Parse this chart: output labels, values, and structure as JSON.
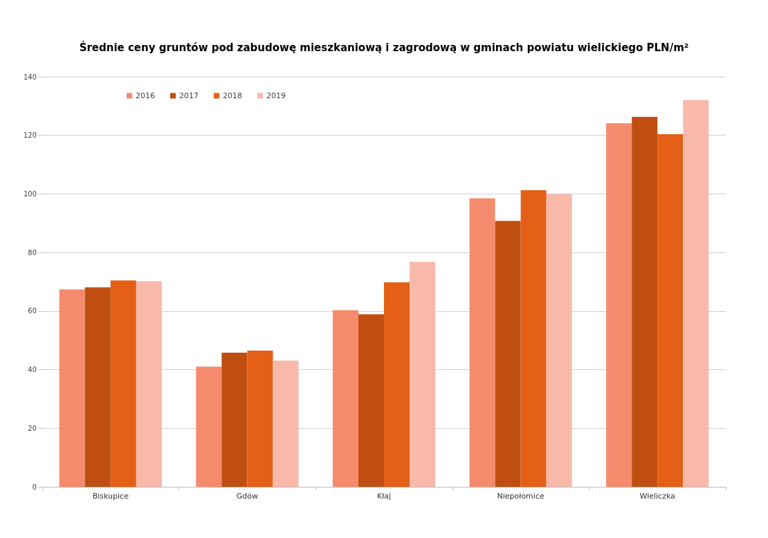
{
  "chart_data": {
    "type": "bar",
    "title": "Średnie ceny gruntów pod zabudowę mieszkaniową i zagrodową w gminach powiatu wielickiego PLN/m²",
    "categories": [
      "Biskupice",
      "Gdów",
      "Kłaj",
      "Niepołomice",
      "Wieliczka"
    ],
    "series": [
      {
        "name": "2016",
        "color": "#f58b6c",
        "values": [
          67.4,
          41.0,
          60.3,
          98.5,
          124.1
        ]
      },
      {
        "name": "2017",
        "color": "#c04e11",
        "values": [
          68.1,
          45.8,
          58.9,
          90.8,
          126.3
        ]
      },
      {
        "name": "2018",
        "color": "#e36016",
        "values": [
          70.5,
          46.5,
          69.8,
          101.3,
          120.4
        ]
      },
      {
        "name": "2019",
        "color": "#f8b9ab",
        "values": [
          70.2,
          43.1,
          76.8,
          100.0,
          132.1
        ]
      }
    ],
    "ylim": [
      0,
      140
    ],
    "yticks": [
      0,
      20,
      40,
      60,
      80,
      100,
      120,
      140
    ],
    "grid": "y",
    "legend": "top left"
  }
}
